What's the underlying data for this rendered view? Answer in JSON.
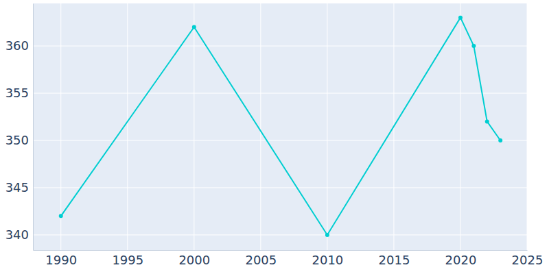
{
  "chart_data": {
    "type": "line",
    "x": [
      1990,
      2000,
      2010,
      2020,
      2021,
      2022,
      2023
    ],
    "values": [
      342,
      362,
      340,
      363,
      360,
      352,
      350
    ],
    "color": "#00ced1",
    "marker": "circle",
    "xlim": [
      1987.9,
      2025
    ],
    "xticks": [
      1990,
      1995,
      2000,
      2005,
      2010,
      2015,
      2020,
      2025
    ],
    "ylim": [
      338.4,
      364.5
    ],
    "yticks": [
      340,
      345,
      350,
      355,
      360
    ],
    "grid": true
  }
}
